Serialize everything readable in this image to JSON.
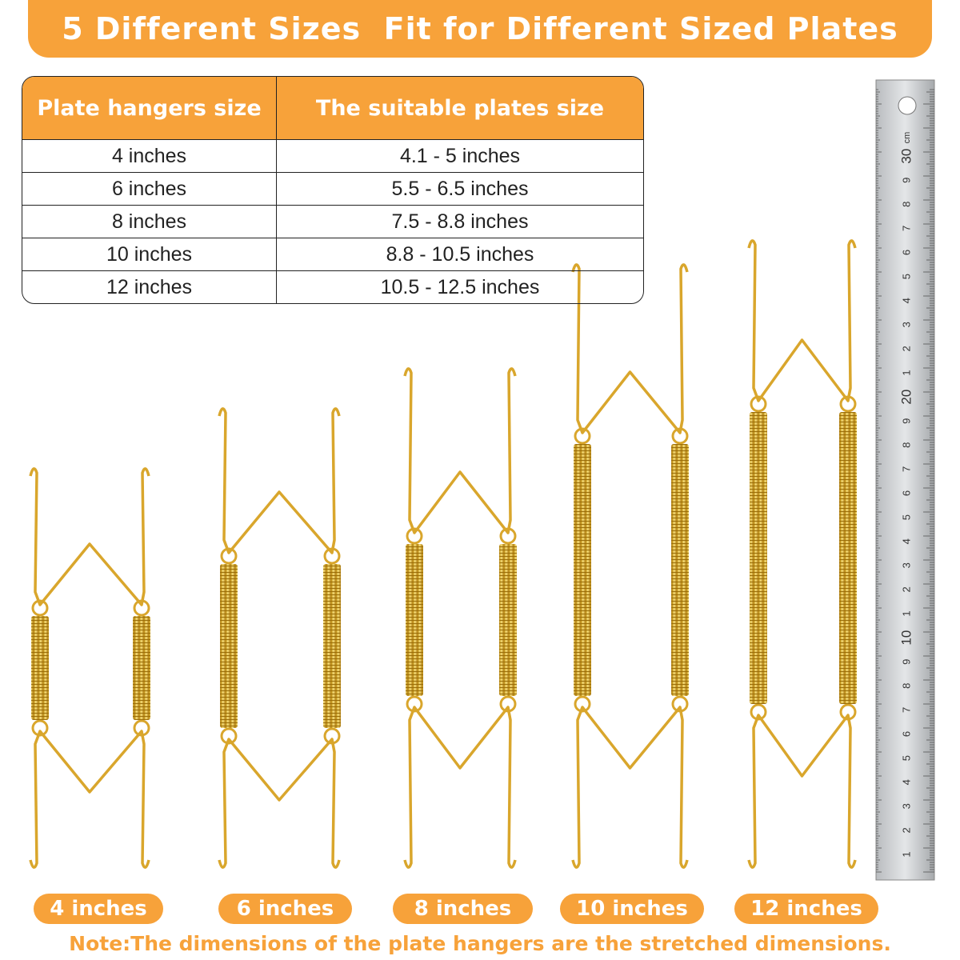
{
  "title": "5 Different Sizes  Fit for Different Sized Plates",
  "table": {
    "header": [
      "Plate hangers size",
      "The suitable plates size"
    ],
    "rows": [
      [
        "4 inches",
        "4.1 - 5 inches"
      ],
      [
        "6 inches",
        "5.5 - 6.5 inches"
      ],
      [
        "8 inches",
        "7.5 - 8.8 inches"
      ],
      [
        "10 inches",
        "8.8 - 10.5 inches"
      ],
      [
        "12 inches",
        "10.5 - 12.5 inches"
      ]
    ]
  },
  "ruler": {
    "labels": [
      "1",
      "2",
      "3",
      "4",
      "5",
      "6",
      "7",
      "8",
      "9",
      "10",
      "1",
      "2",
      "3",
      "4",
      "5",
      "6",
      "7",
      "8",
      "9",
      "20",
      "1",
      "2",
      "3",
      "4",
      "5",
      "6",
      "7",
      "8",
      "9",
      "30"
    ],
    "unit": "cm"
  },
  "labels": [
    "4 inches",
    "6 inches",
    "8 inches",
    "10 inches",
    "12 inches"
  ],
  "note": "Note:The dimensions of the plate hangers are the stretched dimensions."
}
